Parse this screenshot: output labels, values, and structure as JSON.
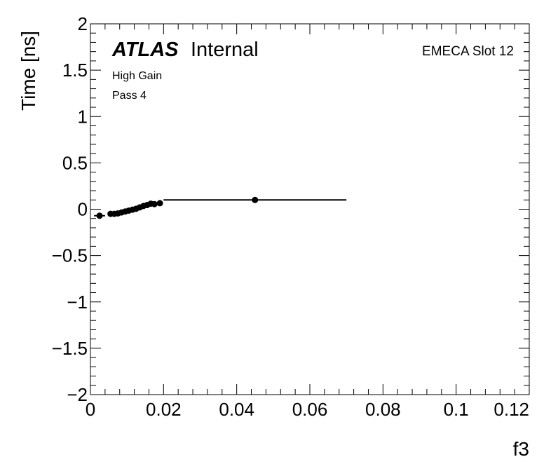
{
  "chart_data": {
    "type": "scatter",
    "xlabel": "f3",
    "ylabel": "Time [ns]",
    "xlim": [
      0,
      0.12
    ],
    "ylim": [
      -2,
      2
    ],
    "x_ticks": [
      0,
      0.02,
      0.04,
      0.06,
      0.08,
      0.1,
      0.12
    ],
    "x_tick_labels": [
      "0",
      "0.02",
      "0.04",
      "0.06",
      "0.08",
      "0.1",
      "0.12"
    ],
    "y_ticks": [
      -2,
      -1.5,
      -1,
      -0.5,
      0,
      0.5,
      1,
      1.5,
      2
    ],
    "y_tick_labels": [
      "−2",
      "−1.5",
      "−1",
      "−0.5",
      "0",
      "0.5",
      "1",
      "1.5",
      "2"
    ],
    "grid": false,
    "annotations": {
      "experiment": "ATLAS",
      "status": "Internal",
      "gain": "High Gain",
      "pass": "Pass 4",
      "region": "EMECA Slot 12"
    },
    "points": [
      {
        "x": 0.0025,
        "y": -0.07,
        "xerr": 0.0015
      },
      {
        "x": 0.0055,
        "y": -0.05,
        "xerr": 0.0003
      },
      {
        "x": 0.0065,
        "y": -0.05,
        "xerr": 0.0003
      },
      {
        "x": 0.0075,
        "y": -0.045,
        "xerr": 0.0003
      },
      {
        "x": 0.0085,
        "y": -0.035,
        "xerr": 0.0003
      },
      {
        "x": 0.0095,
        "y": -0.025,
        "xerr": 0.0003
      },
      {
        "x": 0.0105,
        "y": -0.015,
        "xerr": 0.0003
      },
      {
        "x": 0.0115,
        "y": -0.005,
        "xerr": 0.0003
      },
      {
        "x": 0.0125,
        "y": 0.005,
        "xerr": 0.0003
      },
      {
        "x": 0.0135,
        "y": 0.02,
        "xerr": 0.0003
      },
      {
        "x": 0.0145,
        "y": 0.035,
        "xerr": 0.0003
      },
      {
        "x": 0.0155,
        "y": 0.045,
        "xerr": 0.0003
      },
      {
        "x": 0.0165,
        "y": 0.06,
        "xerr": 0.0003
      },
      {
        "x": 0.0175,
        "y": 0.055,
        "xerr": 0.0003
      },
      {
        "x": 0.019,
        "y": 0.065,
        "xerr": 0.0008
      },
      {
        "x": 0.045,
        "y": 0.1,
        "xerr": 0.025
      }
    ]
  }
}
